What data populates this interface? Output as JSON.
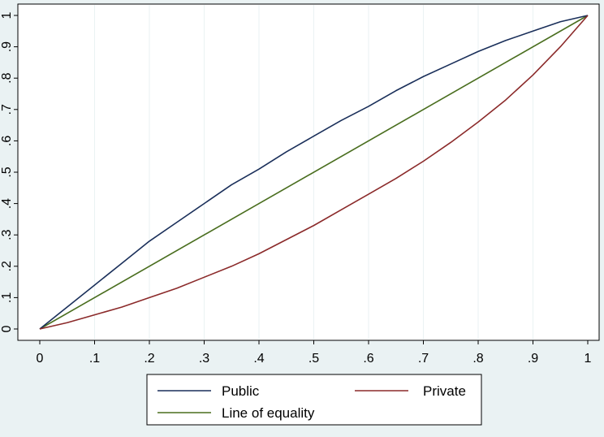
{
  "chart_data": {
    "type": "line",
    "title": "",
    "xlabel": "",
    "ylabel": "",
    "xlim": [
      0,
      1
    ],
    "ylim": [
      0,
      1
    ],
    "grid": "vertical",
    "legend_position": "bottom",
    "x_ticks": [
      {
        "value": 0,
        "label": "0"
      },
      {
        "value": 0.1,
        "label": ".1"
      },
      {
        "value": 0.2,
        "label": ".2"
      },
      {
        "value": 0.3,
        "label": ".3"
      },
      {
        "value": 0.4,
        "label": ".4"
      },
      {
        "value": 0.5,
        "label": ".5"
      },
      {
        "value": 0.6,
        "label": ".6"
      },
      {
        "value": 0.7,
        "label": ".7"
      },
      {
        "value": 0.8,
        "label": ".8"
      },
      {
        "value": 0.9,
        "label": ".9"
      },
      {
        "value": 1,
        "label": "1"
      }
    ],
    "y_ticks": [
      {
        "value": 0,
        "label": "0"
      },
      {
        "value": 0.1,
        "label": ".1"
      },
      {
        "value": 0.2,
        "label": ".2"
      },
      {
        "value": 0.3,
        "label": ".3"
      },
      {
        "value": 0.4,
        "label": ".4"
      },
      {
        "value": 0.5,
        "label": ".5"
      },
      {
        "value": 0.6,
        "label": ".6"
      },
      {
        "value": 0.7,
        "label": ".7"
      },
      {
        "value": 0.8,
        "label": ".8"
      },
      {
        "value": 0.9,
        "label": ".9"
      },
      {
        "value": 1,
        "label": "1"
      }
    ],
    "series": [
      {
        "name": "Public",
        "color": "#1a2f5a",
        "x": [
          0,
          0.05,
          0.1,
          0.15,
          0.2,
          0.25,
          0.3,
          0.35,
          0.4,
          0.45,
          0.5,
          0.55,
          0.6,
          0.65,
          0.7,
          0.75,
          0.8,
          0.85,
          0.9,
          0.95,
          1
        ],
        "y": [
          0,
          0.07,
          0.14,
          0.21,
          0.28,
          0.34,
          0.4,
          0.46,
          0.51,
          0.565,
          0.615,
          0.665,
          0.71,
          0.76,
          0.805,
          0.845,
          0.885,
          0.92,
          0.95,
          0.98,
          1
        ]
      },
      {
        "name": "Private",
        "color": "#8b2a2a",
        "x": [
          0,
          0.05,
          0.1,
          0.15,
          0.2,
          0.25,
          0.3,
          0.35,
          0.4,
          0.45,
          0.5,
          0.55,
          0.6,
          0.65,
          0.7,
          0.75,
          0.8,
          0.85,
          0.9,
          0.95,
          1
        ],
        "y": [
          0,
          0.02,
          0.045,
          0.07,
          0.1,
          0.13,
          0.165,
          0.2,
          0.24,
          0.285,
          0.33,
          0.38,
          0.43,
          0.48,
          0.535,
          0.595,
          0.66,
          0.73,
          0.81,
          0.9,
          1
        ]
      },
      {
        "name": "Line of equality",
        "color": "#4a6e1f",
        "x": [
          0,
          1
        ],
        "y": [
          0,
          1
        ]
      }
    ]
  }
}
